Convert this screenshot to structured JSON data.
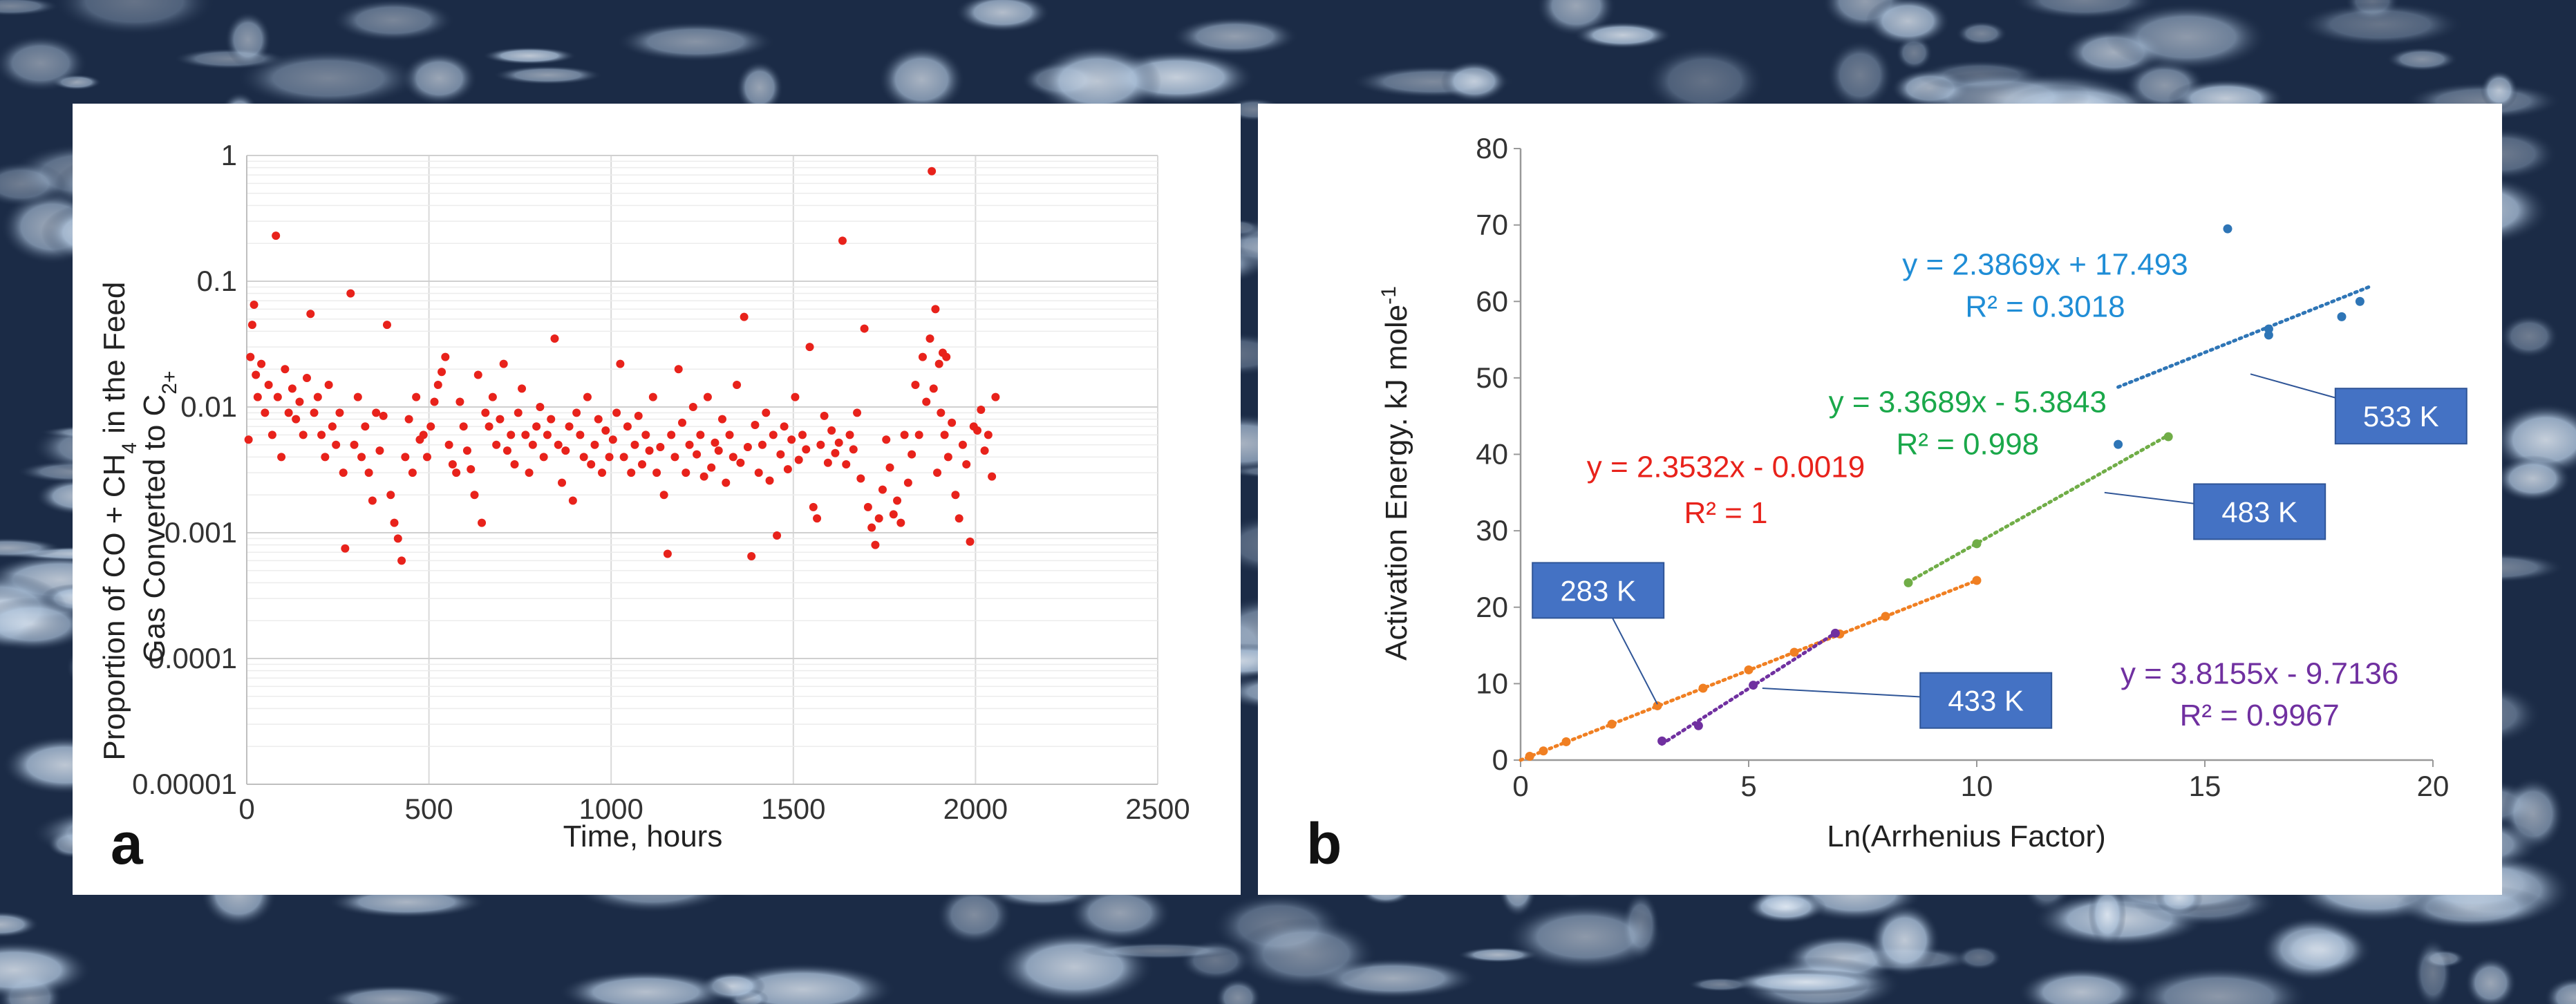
{
  "chart_data": [
    {
      "type": "scatter",
      "panel_label": "a",
      "ylabel_parts": [
        "Proportion of CO + CH",
        "4",
        " in the Feed",
        "Gas Converted to C",
        "2+"
      ],
      "xlabel": "Time, hours",
      "xlim": [
        0,
        2500
      ],
      "yscale": "log",
      "ylim": [
        1e-05,
        1
      ],
      "x_ticks": [
        "0",
        "500",
        "1000",
        "1500",
        "2000",
        "2500"
      ],
      "y_ticks": [
        "0.00001",
        "0.0001",
        "0.001",
        "0.01",
        "0.1",
        "1"
      ],
      "grid": true,
      "marker_color": "#e8221b",
      "series": [
        {
          "name": "proportion",
          "points": [
            [
              5,
              0.0055
            ],
            [
              10,
              0.025
            ],
            [
              15,
              0.045
            ],
            [
              20,
              0.065
            ],
            [
              25,
              0.018
            ],
            [
              30,
              0.012
            ],
            [
              40,
              0.022
            ],
            [
              50,
              0.009
            ],
            [
              60,
              0.015
            ],
            [
              70,
              0.006
            ],
            [
              80,
              0.23
            ],
            [
              85,
              0.012
            ],
            [
              95,
              0.004
            ],
            [
              105,
              0.02
            ],
            [
              115,
              0.009
            ],
            [
              125,
              0.014
            ],
            [
              135,
              0.008
            ],
            [
              145,
              0.011
            ],
            [
              155,
              0.006
            ],
            [
              165,
              0.017
            ],
            [
              175,
              0.055
            ],
            [
              185,
              0.009
            ],
            [
              195,
              0.012
            ],
            [
              205,
              0.006
            ],
            [
              215,
              0.004
            ],
            [
              225,
              0.015
            ],
            [
              235,
              0.007
            ],
            [
              245,
              0.005
            ],
            [
              255,
              0.009
            ],
            [
              265,
              0.003
            ],
            [
              270,
              0.00075
            ],
            [
              285,
              0.08
            ],
            [
              295,
              0.005
            ],
            [
              305,
              0.012
            ],
            [
              315,
              0.004
            ],
            [
              325,
              0.007
            ],
            [
              335,
              0.003
            ],
            [
              345,
              0.0018
            ],
            [
              355,
              0.009
            ],
            [
              365,
              0.0045
            ],
            [
              375,
              0.0085
            ],
            [
              385,
              0.045
            ],
            [
              395,
              0.002
            ],
            [
              405,
              0.0012
            ],
            [
              415,
              0.0009
            ],
            [
              425,
              0.0006
            ],
            [
              435,
              0.004
            ],
            [
              445,
              0.008
            ],
            [
              455,
              0.003
            ],
            [
              465,
              0.012
            ],
            [
              475,
              0.0055
            ],
            [
              485,
              0.006
            ],
            [
              495,
              0.004
            ],
            [
              505,
              0.007
            ],
            [
              515,
              0.011
            ],
            [
              525,
              0.015
            ],
            [
              535,
              0.019
            ],
            [
              545,
              0.025
            ],
            [
              555,
              0.005
            ],
            [
              565,
              0.0035
            ],
            [
              575,
              0.003
            ],
            [
              585,
              0.011
            ],
            [
              595,
              0.007
            ],
            [
              605,
              0.0045
            ],
            [
              615,
              0.0032
            ],
            [
              625,
              0.002
            ],
            [
              635,
              0.018
            ],
            [
              645,
              0.0012
            ],
            [
              655,
              0.009
            ],
            [
              665,
              0.007
            ],
            [
              675,
              0.012
            ],
            [
              685,
              0.005
            ],
            [
              695,
              0.008
            ],
            [
              705,
              0.022
            ],
            [
              715,
              0.0045
            ],
            [
              725,
              0.006
            ],
            [
              735,
              0.0035
            ],
            [
              745,
              0.009
            ],
            [
              755,
              0.014
            ],
            [
              765,
              0.006
            ],
            [
              775,
              0.003
            ],
            [
              785,
              0.005
            ],
            [
              795,
              0.007
            ],
            [
              805,
              0.01
            ],
            [
              815,
              0.004
            ],
            [
              825,
              0.006
            ],
            [
              835,
              0.008
            ],
            [
              845,
              0.035
            ],
            [
              855,
              0.005
            ],
            [
              865,
              0.0025
            ],
            [
              875,
              0.0045
            ],
            [
              885,
              0.007
            ],
            [
              895,
              0.0018
            ],
            [
              905,
              0.009
            ],
            [
              915,
              0.006
            ],
            [
              925,
              0.004
            ],
            [
              935,
              0.012
            ],
            [
              945,
              0.0035
            ],
            [
              955,
              0.005
            ],
            [
              965,
              0.008
            ],
            [
              975,
              0.003
            ],
            [
              985,
              0.0065
            ],
            [
              995,
              0.004
            ],
            [
              1005,
              0.0055
            ],
            [
              1015,
              0.009
            ],
            [
              1025,
              0.022
            ],
            [
              1035,
              0.004
            ],
            [
              1045,
              0.007
            ],
            [
              1055,
              0.003
            ],
            [
              1065,
              0.005
            ],
            [
              1075,
              0.0085
            ],
            [
              1085,
              0.0035
            ],
            [
              1095,
              0.006
            ],
            [
              1105,
              0.0045
            ],
            [
              1115,
              0.012
            ],
            [
              1125,
              0.003
            ],
            [
              1135,
              0.0048
            ],
            [
              1145,
              0.002
            ],
            [
              1155,
              0.00068
            ],
            [
              1165,
              0.006
            ],
            [
              1175,
              0.004
            ],
            [
              1185,
              0.02
            ],
            [
              1195,
              0.0075
            ],
            [
              1205,
              0.003
            ],
            [
              1215,
              0.005
            ],
            [
              1225,
              0.01
            ],
            [
              1235,
              0.0042
            ],
            [
              1245,
              0.006
            ],
            [
              1255,
              0.0028
            ],
            [
              1265,
              0.012
            ],
            [
              1275,
              0.0033
            ],
            [
              1285,
              0.0052
            ],
            [
              1295,
              0.0045
            ],
            [
              1305,
              0.008
            ],
            [
              1315,
              0.0025
            ],
            [
              1325,
              0.006
            ],
            [
              1335,
              0.004
            ],
            [
              1345,
              0.015
            ],
            [
              1355,
              0.0036
            ],
            [
              1365,
              0.052
            ],
            [
              1375,
              0.0048
            ],
            [
              1385,
              0.00065
            ],
            [
              1395,
              0.0072
            ],
            [
              1405,
              0.003
            ],
            [
              1415,
              0.005
            ],
            [
              1425,
              0.009
            ],
            [
              1435,
              0.0026
            ],
            [
              1445,
              0.006
            ],
            [
              1455,
              0.00095
            ],
            [
              1465,
              0.0042
            ],
            [
              1475,
              0.007
            ],
            [
              1485,
              0.0032
            ],
            [
              1495,
              0.0055
            ],
            [
              1505,
              0.012
            ],
            [
              1515,
              0.0038
            ],
            [
              1525,
              0.006
            ],
            [
              1535,
              0.0046
            ],
            [
              1545,
              0.03
            ],
            [
              1555,
              0.0016
            ],
            [
              1565,
              0.0013
            ],
            [
              1575,
              0.005
            ],
            [
              1585,
              0.0085
            ],
            [
              1595,
              0.0036
            ],
            [
              1605,
              0.0065
            ],
            [
              1615,
              0.0043
            ],
            [
              1625,
              0.0052
            ],
            [
              1635,
              0.21
            ],
            [
              1645,
              0.0035
            ],
            [
              1655,
              0.006
            ],
            [
              1665,
              0.0046
            ],
            [
              1675,
              0.009
            ],
            [
              1685,
              0.0027
            ],
            [
              1695,
              0.042
            ],
            [
              1705,
              0.0016
            ],
            [
              1715,
              0.0011
            ],
            [
              1725,
              0.0008
            ],
            [
              1735,
              0.0013
            ],
            [
              1745,
              0.0022
            ],
            [
              1755,
              0.0055
            ],
            [
              1765,
              0.0033
            ],
            [
              1775,
              0.0014
            ],
            [
              1785,
              0.0018
            ],
            [
              1795,
              0.0012
            ],
            [
              1805,
              0.006
            ],
            [
              1815,
              0.0025
            ],
            [
              1825,
              0.0042
            ],
            [
              1835,
              0.015
            ],
            [
              1845,
              0.006
            ],
            [
              1855,
              0.025
            ],
            [
              1865,
              0.011
            ],
            [
              1875,
              0.035
            ],
            [
              1880,
              0.75
            ],
            [
              1885,
              0.014
            ],
            [
              1890,
              0.06
            ],
            [
              1895,
              0.003
            ],
            [
              1900,
              0.022
            ],
            [
              1905,
              0.009
            ],
            [
              1910,
              0.027
            ],
            [
              1915,
              0.006
            ],
            [
              1920,
              0.025
            ],
            [
              1925,
              0.004
            ],
            [
              1935,
              0.0075
            ],
            [
              1945,
              0.002
            ],
            [
              1955,
              0.0013
            ],
            [
              1965,
              0.005
            ],
            [
              1975,
              0.0035
            ],
            [
              1985,
              0.00085
            ],
            [
              1995,
              0.007
            ],
            [
              2005,
              0.0065
            ],
            [
              2015,
              0.0095
            ],
            [
              2025,
              0.0045
            ],
            [
              2035,
              0.006
            ],
            [
              2045,
              0.0028
            ],
            [
              2055,
              0.012
            ]
          ]
        }
      ]
    },
    {
      "type": "scatter",
      "panel_label": "b",
      "xlabel": "Ln(Arrhenius Factor)",
      "ylabel": "Activation Energy. kJ mole",
      "ylabel_sup": "-1",
      "xlim": [
        0,
        20
      ],
      "ylim": [
        0,
        80
      ],
      "x_ticks": [
        "0",
        "5",
        "10",
        "15",
        "20"
      ],
      "y_ticks": [
        "0",
        "10",
        "20",
        "30",
        "40",
        "50",
        "60",
        "70",
        "80"
      ],
      "grid": false,
      "series": [
        {
          "name": "283 K",
          "color": "#f07f22",
          "label_color": "#e8221b",
          "points": [
            [
              0.2,
              0.5
            ],
            [
              0.5,
              1.2
            ],
            [
              1,
              2.4
            ],
            [
              2,
              4.7
            ],
            [
              3,
              7.1
            ],
            [
              4,
              9.4
            ],
            [
              5,
              11.8
            ],
            [
              6,
              14.1
            ],
            [
              7,
              16.5
            ],
            [
              8,
              18.8
            ],
            [
              10,
              23.5
            ]
          ],
          "trend": [
            [
              0,
              0
            ],
            [
              10,
              23.5
            ]
          ],
          "equation": "y = 2.3532x - 0.0019",
          "r2": "R² = 1"
        },
        {
          "name": "433 K",
          "color": "#7030a0",
          "label_color": "#7030a0",
          "points": [
            [
              3.1,
              2.5
            ],
            [
              3.9,
              4.5
            ],
            [
              5.1,
              9.8
            ],
            [
              6.9,
              16.6
            ]
          ],
          "trend": [
            [
              3.1,
              2.1
            ],
            [
              7,
              17
            ]
          ],
          "equation": "y = 3.8155x - 9.7136",
          "r2": "R² = 0.9967"
        },
        {
          "name": "483 K",
          "color": "#70ad47",
          "label_color": "#1aa84a",
          "points": [
            [
              8.5,
              23.2
            ],
            [
              10,
              28.3
            ],
            [
              14.2,
              42.3
            ]
          ],
          "trend": [
            [
              8.5,
              23.3
            ],
            [
              14.2,
              42.5
            ]
          ],
          "equation": "y = 3.3689x - 5.3843",
          "r2": "R² = 0.998"
        },
        {
          "name": "533 K",
          "color": "#2e75b6",
          "label_color": "#1f8dd6",
          "points": [
            [
              13.1,
              41.3
            ],
            [
              15.5,
              69.5
            ],
            [
              16.4,
              55.6
            ],
            [
              16.4,
              56.4
            ],
            [
              18,
              58
            ],
            [
              18.4,
              60
            ]
          ],
          "trend": [
            [
              13.1,
              48.8
            ],
            [
              18.6,
              61.9
            ]
          ],
          "equation": "y = 2.3869x + 17.493",
          "r2": "R² = 0.3018"
        }
      ],
      "callouts": [
        "283 K",
        "433 K",
        "483 K",
        "533 K"
      ]
    }
  ]
}
